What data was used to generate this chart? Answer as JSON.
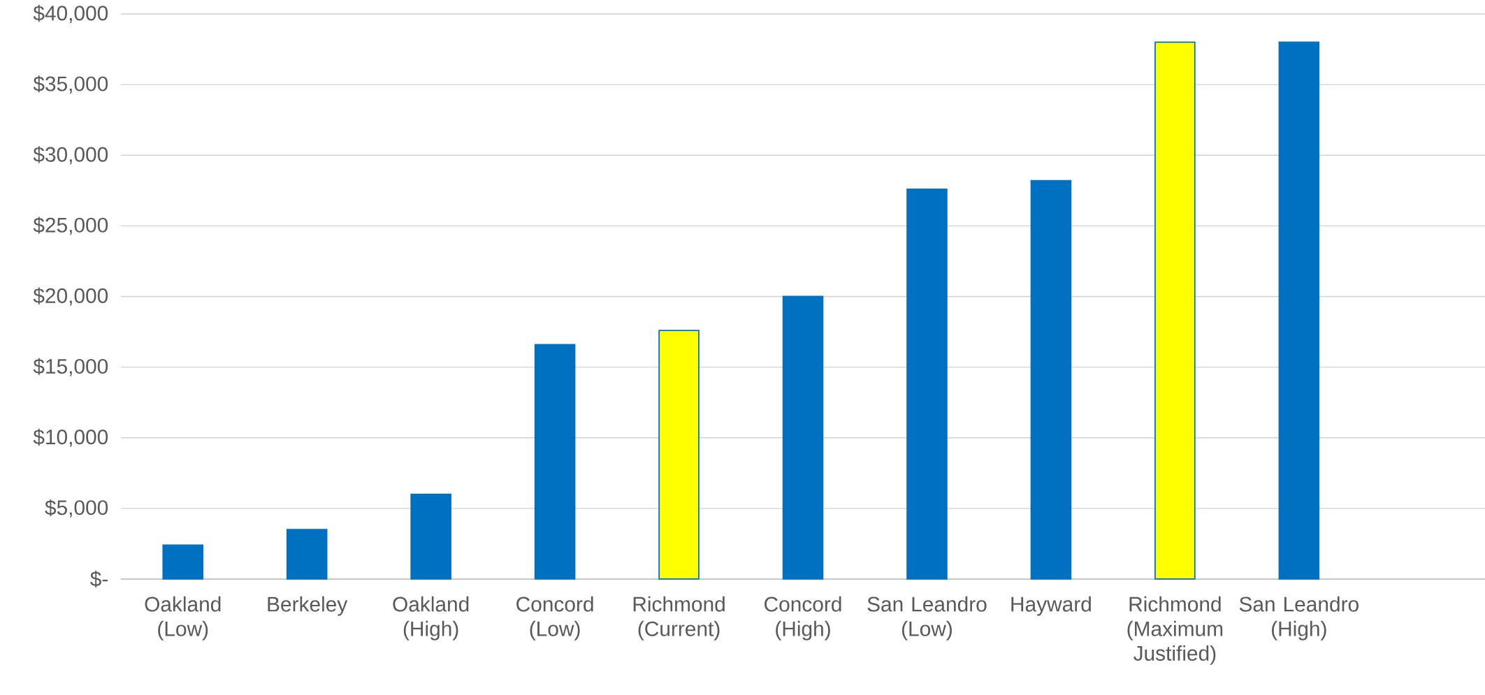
{
  "chart_data": {
    "type": "bar",
    "categories": [
      "Oakland (Low)",
      "Berkeley",
      "Oakland (High)",
      "Concord (Low)",
      "Richmond (Current)",
      "Concord (High)",
      "San Leandro (Low)",
      "Hayward",
      "Richmond (Maximum Justified)",
      "San Leandro (High)",
      null
    ],
    "values": [
      2400,
      3500,
      6000,
      16600,
      17600,
      20000,
      27600,
      28200,
      38000,
      38000,
      null
    ],
    "color": "#0070c0",
    "colors": [
      "#0070c0",
      "#0070c0",
      "#0070c0",
      "#0070c0",
      "#ffff00",
      "#0070c0",
      "#0070c0",
      "#0070c0",
      "#ffff00",
      "#0070c0",
      "#0070c0"
    ],
    "ylim": [
      0,
      40000
    ],
    "yticks": [
      {
        "value": 0,
        "label": "$-"
      },
      {
        "value": 5000,
        "label": "$5,000"
      },
      {
        "value": 10000,
        "label": "$10,000"
      },
      {
        "value": 15000,
        "label": "$15,000"
      },
      {
        "value": 20000,
        "label": "$20,000"
      },
      {
        "value": 25000,
        "label": "$25,000"
      },
      {
        "value": 30000,
        "label": "$30,000"
      },
      {
        "value": 35000,
        "label": "$35,000"
      },
      {
        "value": 40000,
        "label": "$40,000"
      }
    ],
    "grid": "y"
  }
}
